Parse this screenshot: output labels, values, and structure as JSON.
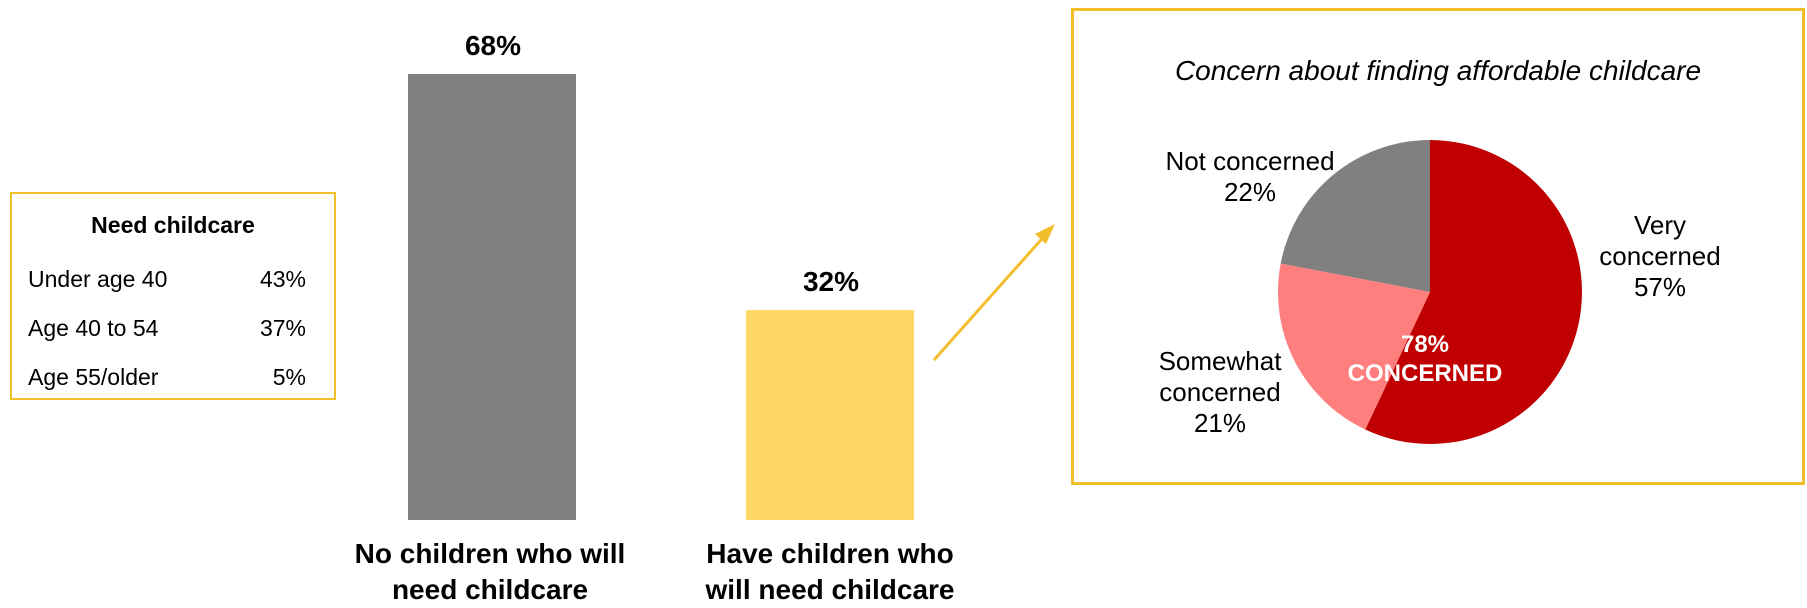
{
  "need_table": {
    "title": "Need childcare",
    "rows": [
      {
        "label": "Under age 40",
        "value": "43%"
      },
      {
        "label": "Age 40 to 54",
        "value": "37%"
      },
      {
        "label": "Age 55/older",
        "value": "5%"
      }
    ]
  },
  "colors": {
    "bar_none": "#808080",
    "bar_have": "#FDD866",
    "very": "#C00000",
    "somewhat": "#FF7F7F",
    "not": "#808080",
    "accent_border": "#F2BE2C"
  },
  "chart_data": [
    {
      "type": "bar",
      "categories": [
        "No children who will need childcare",
        "Have children who will need childcare"
      ],
      "category_lines": [
        [
          "No children who will",
          "need childcare"
        ],
        [
          "Have children who",
          "will need childcare"
        ]
      ],
      "values": [
        68,
        32
      ],
      "value_labels": [
        "68%",
        "32%"
      ],
      "ylim": [
        0,
        68
      ]
    },
    {
      "type": "pie",
      "title": "Concern about finding affordable childcare",
      "slices": [
        {
          "name": "Very concerned",
          "value": 57,
          "label_lines": [
            "Very",
            "concerned",
            "57%"
          ]
        },
        {
          "name": "Somewhat concerned",
          "value": 21,
          "label_lines": [
            "Somewhat",
            "concerned",
            "21%"
          ]
        },
        {
          "name": "Not concerned",
          "value": 22,
          "label_lines": [
            "Not concerned",
            "22%"
          ]
        }
      ],
      "center_lines": [
        "78%",
        "CONCERNED"
      ]
    }
  ]
}
